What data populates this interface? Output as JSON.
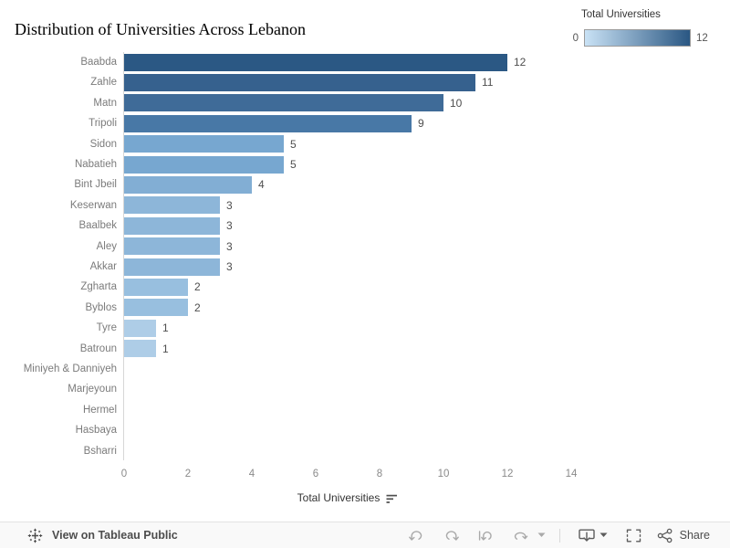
{
  "title": "Distribution of Universities Across Lebanon",
  "legend": {
    "title": "Total Universities",
    "min_label": "0",
    "max_label": "12",
    "gradient_start": "#c9e2f5",
    "gradient_end": "#2a5783"
  },
  "chart_data": {
    "type": "bar",
    "orientation": "horizontal",
    "title": "Distribution of Universities Across Lebanon",
    "xlabel": "Total Universities",
    "ylabel": "",
    "xlim": [
      0,
      14
    ],
    "x_ticks": [
      0,
      2,
      4,
      6,
      8,
      10,
      12,
      14
    ],
    "grid": false,
    "legend_position": "top-right",
    "categories": [
      "Baabda",
      "Zahle",
      "Matn",
      "Tripoli",
      "Sidon",
      "Nabatieh",
      "Bint Jbeil",
      "Keserwan",
      "Baalbek",
      "Aley",
      "Akkar",
      "Zgharta",
      "Byblos",
      "Tyre",
      "Batroun",
      "Miniyeh & Danniyeh",
      "Marjeyoun",
      "Hermel",
      "Hasbaya",
      "Bsharri"
    ],
    "values": [
      12,
      11,
      10,
      9,
      5,
      5,
      4,
      3,
      3,
      3,
      3,
      2,
      2,
      1,
      1,
      0,
      0,
      0,
      0,
      0
    ],
    "bar_colors": [
      "#2b5884",
      "#36618e",
      "#3f6b98",
      "#4878a6",
      "#77a7d0",
      "#77a7d0",
      "#82aed4",
      "#8db6d9",
      "#8db6d9",
      "#8db6d9",
      "#8db6d9",
      "#98bfdf",
      "#98bfdf",
      "#aecde7",
      "#aecde7",
      "",
      "",
      "",
      "",
      ""
    ]
  },
  "axis": {
    "title": "Total Universities",
    "sort_order": "descending"
  },
  "toolbar": {
    "attribution": "View on Tableau Public",
    "share_label": "Share"
  },
  "colors": {
    "category_label": "#7b7b7b",
    "value_label": "#4e4e4e",
    "axis_line": "#d7d7d7",
    "toolbar_bg": "#f9f9f9"
  }
}
